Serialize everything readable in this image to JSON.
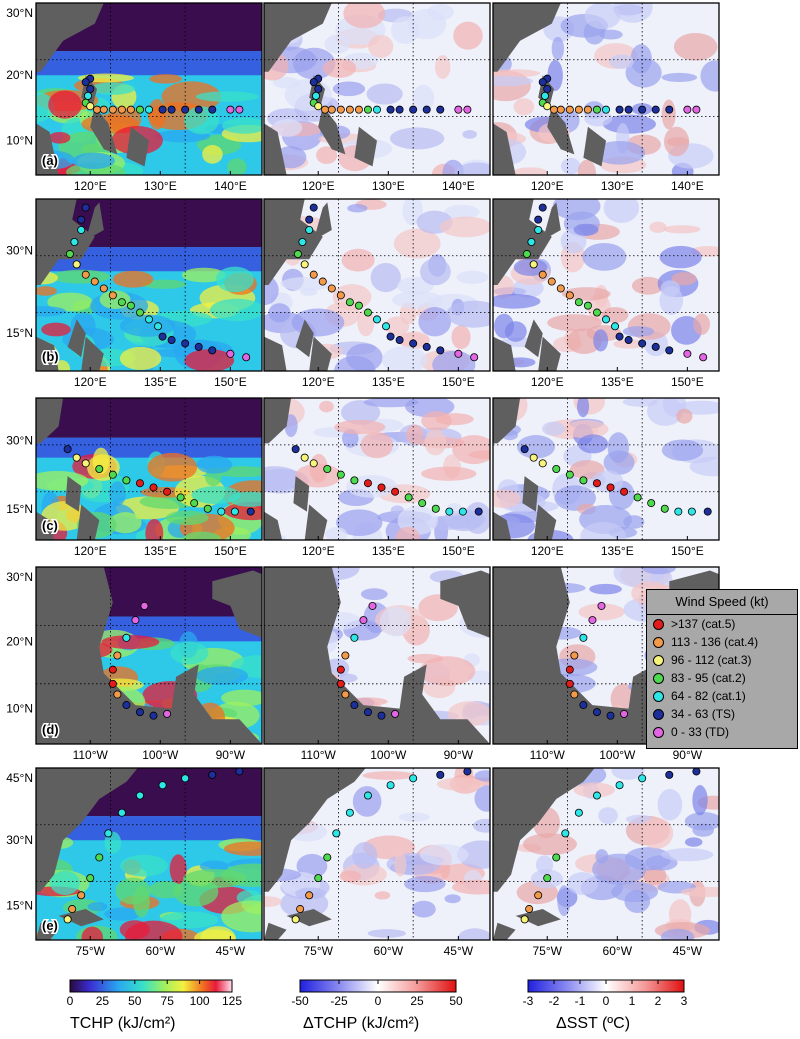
{
  "panels": [
    {
      "label": "(a)",
      "xticks": [
        "120°E",
        "130°E",
        "140°E"
      ],
      "yticks": [
        "30°N",
        "20°N",
        "10°N"
      ]
    },
    {
      "label": "(b)",
      "xticks": [
        "120°E",
        "135°E",
        "150°E"
      ],
      "yticks": [
        "30°N",
        "15°N"
      ]
    },
    {
      "label": "(c)",
      "xticks": [
        "120°E",
        "135°E",
        "150°E"
      ],
      "yticks": [
        "30°N",
        "15°N"
      ]
    },
    {
      "label": "(d)",
      "xticks": [
        "110°W",
        "100°W",
        "90°W"
      ],
      "yticks": [
        "30°N",
        "20°N",
        "10°N"
      ]
    },
    {
      "label": "(e)",
      "xticks": [
        "75°W",
        "60°W",
        "45°W"
      ],
      "yticks": [
        "45°N",
        "30°N",
        "15°N"
      ]
    }
  ],
  "columns": [
    {
      "field": "TCHP",
      "title": "TCHP (kJ/cm²)",
      "ticks": [
        "0",
        "25",
        "50",
        "75",
        "100",
        "125"
      ]
    },
    {
      "field": "dTCHP",
      "title": "ΔTCHP (kJ/cm²)",
      "ticks": [
        "-50",
        "-25",
        "0",
        "25",
        "50"
      ]
    },
    {
      "field": "dSST",
      "title": "ΔSST (ºC)",
      "ticks": [
        "-3",
        "-2",
        "-1",
        "0",
        "1",
        "2",
        "3"
      ]
    }
  ],
  "legend": {
    "title": "Wind Speed (kt)",
    "items": [
      {
        "label": ">137 (cat.5)",
        "color": "#e21b1b"
      },
      {
        "label": "113 - 136 (cat.4)",
        "color": "#f39a4a"
      },
      {
        "label": "96 - 112 (cat.3)",
        "color": "#f8f37a"
      },
      {
        "label": "83 - 95 (cat.2)",
        "color": "#4fd94f"
      },
      {
        "label": "64 - 82 (cat.1)",
        "color": "#2fe6e6"
      },
      {
        "label": "34 - 63 (TS)",
        "color": "#1c2f9a"
      },
      {
        "label": "0 - 33 (TD)",
        "color": "#e266e2"
      }
    ]
  },
  "colors": {
    "land": "#5f5f5f",
    "frame": "#000000"
  }
}
